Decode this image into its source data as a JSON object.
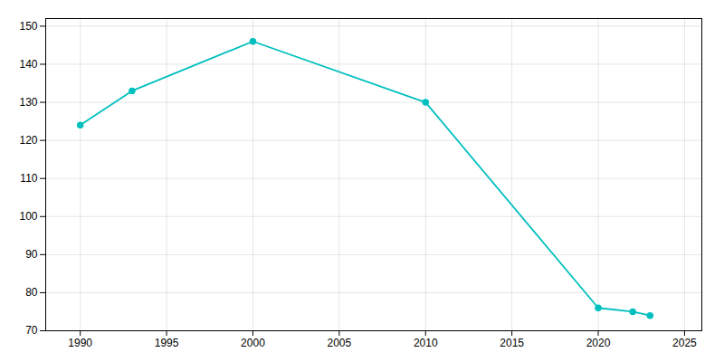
{
  "chart_data": {
    "type": "line",
    "x": [
      1990,
      1993,
      2000,
      2010,
      2020,
      2022,
      2023
    ],
    "values": [
      124,
      133,
      146,
      130,
      76,
      75,
      74
    ],
    "color": "#00BFBF",
    "marker": "circle",
    "xlim": [
      1988,
      2026
    ],
    "xticks": [
      1990,
      1995,
      2000,
      2005,
      2010,
      2015,
      2020,
      2025
    ],
    "ylim": [
      70,
      152
    ],
    "yticks": [
      70,
      80,
      90,
      100,
      110,
      120,
      130,
      140,
      150
    ],
    "grid": true
  }
}
